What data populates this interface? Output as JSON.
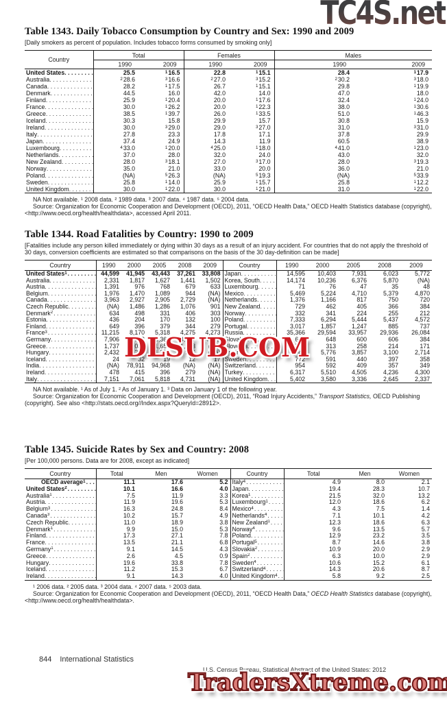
{
  "watermarks": {
    "top": "TC4S.net",
    "middle": "DLSUB.COM",
    "bottom": "TradersXtreme.com"
  },
  "footer": {
    "page_number": "844",
    "section": "International Statistics",
    "source_line": "U.S. Census Bureau, Statistical Abstract of the United States: 2012"
  },
  "t1343": {
    "title": "Table 1343. Daily Tobacco Consumption by Country and Sex: 1990 and 2009",
    "note": "[Daily smokers as percent of population. Includes tobacco forms consumed by smoking only]",
    "h_country": "Country",
    "groups": [
      "Total",
      "Females",
      "Males"
    ],
    "years": [
      "1990",
      "2009"
    ],
    "rows": [
      {
        "c": "United States",
        "b": 1,
        "v": [
          "25.5",
          "1|16.5",
          "22.8",
          "1|15.1",
          "28.4",
          "1|17.9"
        ]
      },
      {
        "c": "Australia",
        "v": [
          "2|28.6",
          "3|16.6",
          "2|27.0",
          "3|15.2",
          "2|30.2",
          "3|18.0"
        ]
      },
      {
        "c": "Canada",
        "v": [
          "28.2",
          "1|17.5",
          "26.7",
          "1|15.1",
          "29.8",
          "1|19.9"
        ]
      },
      {
        "c": "Denmark",
        "v": [
          "44.5",
          "16.0",
          "42.0",
          "14.0",
          "47.0",
          "18.0"
        ]
      },
      {
        "c": "Finland",
        "v": [
          "25.9",
          "1|20.4",
          "20.0",
          "1|17.6",
          "32.4",
          "1|24.0"
        ]
      },
      {
        "c": "France",
        "v": [
          "30.0",
          "1|26.2",
          "20.0",
          "1|22.3",
          "38.0",
          "1|30.6"
        ]
      },
      {
        "c": "Greece",
        "v": [
          "38.5",
          "1|39.7",
          "26.0",
          "1|33.5",
          "51.0",
          "1|46.3"
        ]
      },
      {
        "c": "Iceland",
        "v": [
          "30.3",
          "15.8",
          "29.9",
          "15.7",
          "30.8",
          "15.9"
        ]
      },
      {
        "c": "Ireland",
        "v": [
          "30.0",
          "3|29.0",
          "29.0",
          "3|27.0",
          "31.0",
          "3|31.0"
        ]
      },
      {
        "c": "Italy",
        "v": [
          "27.8",
          "23.3",
          "17.8",
          "17.1",
          "37.8",
          "29.9"
        ]
      },
      {
        "c": "Japan",
        "v": [
          "37.4",
          "24.9",
          "14.3",
          "11.9",
          "60.5",
          "38.9"
        ]
      },
      {
        "c": "Luxembourg",
        "v": [
          "4|33.0",
          "1|20.0",
          "4|25.0",
          "1|18.0",
          "4|41.0",
          "1|23.0"
        ]
      },
      {
        "c": "Netherlands",
        "v": [
          "37.0",
          "28.0",
          "32.0",
          "24.0",
          "43.0",
          "32.0"
        ]
      },
      {
        "c": "New Zealand",
        "v": [
          "28.0",
          "3|18.1",
          "27.0",
          "3|17.0",
          "28.0",
          "3|19.3"
        ]
      },
      {
        "c": "Norway",
        "v": [
          "35.0",
          "21.0",
          "33.0",
          "20.0",
          "36.0",
          "21.0"
        ]
      },
      {
        "c": "Poland",
        "v": [
          "(NA)",
          "5|26.3",
          "(NA)",
          "5|19.3",
          "(NA)",
          "5|33.9"
        ]
      },
      {
        "c": "Sweden",
        "v": [
          "25.8",
          "1|14.0",
          "25.9",
          "1|15.7",
          "25.8",
          "1|12.2"
        ]
      },
      {
        "c": "United Kingdom",
        "v": [
          "30.0",
          "1|22.0",
          "30.0",
          "1|21.0",
          "31.0",
          "1|22.0"
        ]
      }
    ],
    "fn": "NA Not available. ¹ 2008 data. ² 1989 data. ³ 2007 data. ⁴ 1987 data. ⁵ 2004 data.",
    "src": "Source: Organization for Economic Cooperation and Development (OECD), 2011, “OECD Health Data,” OECD Health Statistics database (copyright), <http://www.oecd.org/health/healthdata>, accessed April 2011."
  },
  "t1344": {
    "title": "Table 1344. Road Fatalities by Country: 1990 to 2009",
    "note": "[Fatalities include any person killed immediately or dying within 30 days as a result of an injury accident. For countries that do not apply the threshold of 30 days, conversion coefficients are estimated so that comparisons on the basis of the 30 day-definition can be made]",
    "h_country": "Country",
    "years": [
      "1990",
      "2000",
      "2005",
      "2008",
      "2009"
    ],
    "rows": [
      {
        "l": {
          "c": "United States",
          "cs": "1",
          "b": 1,
          "v": [
            "44,599",
            "41,945",
            "43,443",
            "37,261",
            "33,808"
          ]
        },
        "r": {
          "c": "Japan",
          "v": [
            "14,595",
            "10,403",
            "7,931",
            "6,023",
            "5,772"
          ]
        }
      },
      {
        "l": {
          "c": "Australia",
          "v": [
            "2,331",
            "1,817",
            "1,627",
            "1,441",
            "1,502"
          ]
        },
        "r": {
          "c": "Korea, South",
          "v": [
            "14,174",
            "10,236",
            "6,376",
            "5,870",
            "(NA)"
          ]
        }
      },
      {
        "l": {
          "c": "Austria",
          "v": [
            "1,391",
            "976",
            "768",
            "679",
            "633"
          ]
        },
        "r": {
          "c": "Luxembourg",
          "v": [
            "71",
            "76",
            "47",
            "35",
            "48"
          ]
        }
      },
      {
        "l": {
          "c": "Belgium",
          "v": [
            "1,976",
            "1,470",
            "1,089",
            "944",
            "(NA)"
          ]
        },
        "r": {
          "c": "Mexico",
          "v": [
            "5,469",
            "5,224",
            "4,710",
            "5,379",
            "4,870"
          ]
        }
      },
      {
        "l": {
          "c": "Canada",
          "v": [
            "3,963",
            "2,927",
            "2,905",
            "2,729",
            "(NA)"
          ]
        },
        "r": {
          "c": "Netherlands",
          "v": [
            "1,376",
            "1,166",
            "817",
            "750",
            "720"
          ]
        }
      },
      {
        "l": {
          "c": "Czech Republic",
          "v": [
            "(NA)",
            "1,486",
            "1,286",
            "1,076",
            "901"
          ]
        },
        "r": {
          "c": "New Zealand",
          "v": [
            "729",
            "462",
            "405",
            "366",
            "384"
          ]
        }
      },
      {
        "l": {
          "c": "Denmark",
          "cs": "2",
          "v": [
            "634",
            "498",
            "331",
            "406",
            "303"
          ]
        },
        "r": {
          "c": "Norway",
          "v": [
            "332",
            "341",
            "224",
            "255",
            "212"
          ]
        }
      },
      {
        "l": {
          "c": "Estonia",
          "v": [
            "436",
            "204",
            "170",
            "132",
            "100"
          ]
        },
        "r": {
          "c": "Poland",
          "v": [
            "7,333",
            "6,294",
            "5,444",
            "5,437",
            "4,572"
          ]
        }
      },
      {
        "l": {
          "c": "Finland",
          "v": [
            "649",
            "396",
            "379",
            "344",
            "279"
          ]
        },
        "r": {
          "c": "Portugal",
          "v": [
            "3,017",
            "1,857",
            "1,247",
            "885",
            "737"
          ]
        }
      },
      {
        "l": {
          "c": "France",
          "cs": "3",
          "v": [
            "11,215",
            "8,170",
            "5,318",
            "4,275",
            "4,273"
          ]
        },
        "r": {
          "c": "Russia",
          "v": [
            "35,366",
            "29,594",
            "33,957",
            "29,936",
            "26,084"
          ]
        }
      },
      {
        "l": {
          "c": "Germany",
          "v": [
            "7,906",
            "7,503",
            "5,361",
            "4,477",
            "4,152"
          ]
        },
        "r": {
          "c": "Slovakia",
          "v": [
            "645",
            "648",
            "600",
            "606",
            "384"
          ]
        }
      },
      {
        "l": {
          "c": "Greece",
          "v": [
            "1,737",
            "2,037",
            "1,658",
            "1,553",
            "(NA)"
          ]
        },
        "r": {
          "c": "Slovenia",
          "v": [
            "517",
            "313",
            "258",
            "214",
            "171"
          ]
        }
      },
      {
        "l": {
          "c": "Hungary",
          "v": [
            "2,432",
            "1,200",
            "1,278",
            "996",
            "(NA)"
          ]
        },
        "r": {
          "c": "Spain",
          "v": [
            "6,948",
            "5,776",
            "3,857",
            "3,100",
            "2,714"
          ]
        }
      },
      {
        "l": {
          "c": "Iceland",
          "v": [
            "24",
            "32",
            "19",
            "12",
            "17"
          ]
        },
        "r": {
          "c": "Sweden",
          "v": [
            "772",
            "591",
            "440",
            "397",
            "358"
          ]
        }
      },
      {
        "l": {
          "c": "India",
          "v": [
            "(NA)",
            "78,911",
            "94,968",
            "(NA)",
            "(NA)"
          ]
        },
        "r": {
          "c": "Switzerland",
          "v": [
            "954",
            "592",
            "409",
            "357",
            "349"
          ]
        }
      },
      {
        "l": {
          "c": "Ireland",
          "v": [
            "478",
            "415",
            "396",
            "279",
            "(NA)"
          ]
        },
        "r": {
          "c": "Turkey",
          "v": [
            "6,317",
            "5,510",
            "4,505",
            "4,236",
            "4,300"
          ]
        }
      },
      {
        "l": {
          "c": "Italy",
          "v": [
            "7,151",
            "7,061",
            "5,818",
            "4,731",
            "(NA)"
          ]
        },
        "r": {
          "c": "United Kingdom",
          "v": [
            "5,402",
            "3,580",
            "3,336",
            "2,645",
            "2,337"
          ]
        }
      }
    ],
    "fn": "NA Not available. ¹ As of July 1. ² As of January 1. ³ Data on January 1 of the following year.",
    "src_pre": "Source: Organization for Economic Cooperation and Development (OECD), 2011, “Road Injury Accidents,” ",
    "src_italic": "Transport Statistics,",
    "src_post": " OECD Publishing (copyright). See also <http://stats.oecd.org//Index.aspx?QueryId=28912>."
  },
  "t1345": {
    "title": "Table 1345. Suicide Rates by Sex and Country: 2008",
    "note": "[Per 100,000 persons. Data are for 2008, except as indicated]",
    "h_country": "Country",
    "cols": [
      "Total",
      "Men",
      "Women"
    ],
    "rows": [
      {
        "l": {
          "c": "OECD average",
          "cs": "1",
          "b": 1,
          "ind": 1,
          "v": [
            "11.1",
            "17.6",
            "5.2"
          ]
        },
        "r": {
          "c": "Italy",
          "cs": "4",
          "v": [
            "4.9",
            "8.0",
            "2.1"
          ]
        }
      },
      {
        "l": {
          "c": "United States",
          "cs": "2",
          "b": 1,
          "v": [
            "10.1",
            "16.6",
            "4.0"
          ]
        },
        "r": {
          "c": "Japan",
          "v": [
            "19.4",
            "28.3",
            "10.7"
          ]
        }
      },
      {
        "l": {
          "c": "Australia",
          "cs": "1",
          "v": [
            "7.5",
            "11.9",
            "3.3"
          ]
        },
        "r": {
          "c": "Korea",
          "cs": "1",
          "v": [
            "21.5",
            "32.0",
            "13.2"
          ]
        }
      },
      {
        "l": {
          "c": "Austria",
          "v": [
            "11.9",
            "19.6",
            "5.3"
          ]
        },
        "r": {
          "c": "Luxembourg",
          "cs": "1",
          "v": [
            "12.0",
            "18.6",
            "6.2"
          ]
        }
      },
      {
        "l": {
          "c": "Belgium",
          "cs": "3",
          "v": [
            "16.3",
            "24.8",
            "8.4"
          ]
        },
        "r": {
          "c": "Mexico",
          "cs": "4",
          "v": [
            "4.3",
            "7.5",
            "1.4"
          ]
        }
      },
      {
        "l": {
          "c": "Canada",
          "cs": "3",
          "v": [
            "10.2",
            "15.7",
            "4.9"
          ]
        },
        "r": {
          "c": "Netherlands",
          "cs": "4",
          "v": [
            "7.1",
            "10.1",
            "4.2"
          ]
        }
      },
      {
        "l": {
          "c": "Czech Republic",
          "v": [
            "11.0",
            "18.9",
            "3.8"
          ]
        },
        "r": {
          "c": "New Zealand",
          "cs": "1",
          "v": [
            "12.3",
            "18.6",
            "6.3"
          ]
        }
      },
      {
        "l": {
          "c": "Denmark",
          "cs": "1",
          "v": [
            "9.9",
            "15.0",
            "5.3"
          ]
        },
        "r": {
          "c": "Norway",
          "cs": "4",
          "v": [
            "9.6",
            "13.5",
            "5.7"
          ]
        }
      },
      {
        "l": {
          "c": "Finland",
          "v": [
            "17.3",
            "27.1",
            "7.8"
          ]
        },
        "r": {
          "c": "Poland",
          "v": [
            "12.9",
            "23.2",
            "3.5"
          ]
        }
      },
      {
        "l": {
          "c": "France",
          "v": [
            "13.5",
            "21.1",
            "6.8"
          ]
        },
        "r": {
          "c": "Portugal",
          "cs": "5",
          "v": [
            "8.7",
            "14.6",
            "3.8"
          ]
        }
      },
      {
        "l": {
          "c": "Germany",
          "cs": "1",
          "v": [
            "9.1",
            "14.5",
            "4.3"
          ]
        },
        "r": {
          "c": "Slovakia",
          "cs": "2",
          "v": [
            "10.9",
            "20.0",
            "2.9"
          ]
        }
      },
      {
        "l": {
          "c": "Greece",
          "v": [
            "2.6",
            "4.5",
            "0.9"
          ]
        },
        "r": {
          "c": "Spain",
          "cs": "2",
          "v": [
            "6.3",
            "10.0",
            "2.9"
          ]
        }
      },
      {
        "l": {
          "c": "Hungary",
          "v": [
            "19.6",
            "33.8",
            "7.8"
          ]
        },
        "r": {
          "c": "Sweden",
          "cs": "4",
          "v": [
            "10.6",
            "15.2",
            "6.1"
          ]
        }
      },
      {
        "l": {
          "c": "Iceland",
          "v": [
            "11.2",
            "15.3",
            "6.7"
          ]
        },
        "r": {
          "c": "Switzerland",
          "cs": "4",
          "v": [
            "14.3",
            "20.6",
            "8.7"
          ]
        }
      },
      {
        "l": {
          "c": "Ireland",
          "v": [
            "9.1",
            "14.3",
            "4.0"
          ]
        },
        "r": {
          "c": "United Kingdom",
          "cs": "4",
          "v": [
            "5.8",
            "9.2",
            "2.5"
          ]
        }
      }
    ],
    "fn": "¹ 2006 data. ² 2005 data. ³ 2004 data. ⁴ 2007 data. ⁵ 2003 data.",
    "src_pre": "Source: Organization for Economic Cooperation and Development (OECD), 2011, “OECD Health Data,” ",
    "src_italic": "OECD Health Statistics",
    "src_post": " database (copyright), <http://www.oecd.org/health/healthdata>."
  }
}
